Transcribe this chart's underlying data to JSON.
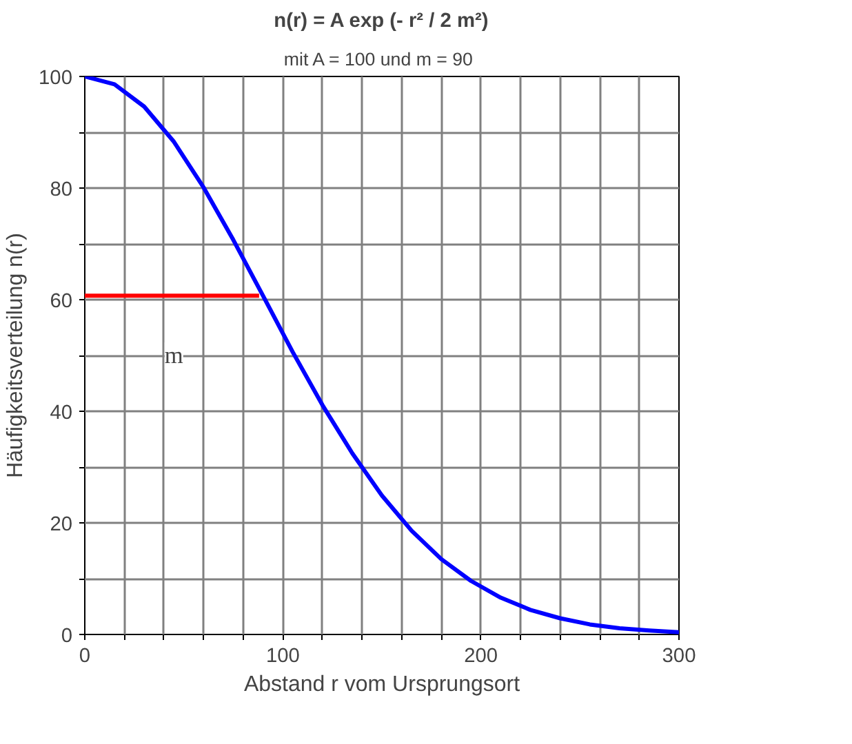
{
  "chart_data": {
    "type": "line",
    "title": "n(r) = A exp (- r² / 2 m²)",
    "subtitle": "mit  A = 100 und m = 90",
    "xlabel": "Abstand r vom Ursprungsort",
    "ylabel": "Häufigkeitsverteilung n(r)",
    "x": [
      0,
      15,
      30,
      45,
      60,
      75,
      90,
      105,
      120,
      135,
      150,
      165,
      180,
      195,
      210,
      225,
      240,
      255,
      270,
      285,
      300
    ],
    "series": [
      {
        "color": "#0000ff",
        "values": [
          100,
          98.6,
          94.6,
          88.3,
          80.1,
          70.7,
          60.7,
          50.6,
          41.1,
          32.5,
          24.9,
          18.6,
          13.5,
          9.6,
          6.6,
          4.4,
          2.9,
          1.8,
          1.1,
          0.7,
          0.4
        ]
      },
      {
        "color": "#ff0000",
        "x": [
          0,
          88
        ],
        "values": [
          60.7,
          60.7
        ]
      }
    ],
    "annotations": [
      {
        "text": "m",
        "x": 45,
        "y": 50
      }
    ],
    "xlim": [
      0,
      300
    ],
    "ylim": [
      0,
      100
    ],
    "xticks": [
      0,
      {
        "value": 20,
        "label": null
      },
      {
        "value": 40,
        "label": null
      },
      {
        "value": 60,
        "label": null
      },
      {
        "value": 80,
        "label": null
      },
      100,
      {
        "value": 120,
        "label": null
      },
      {
        "value": 140,
        "label": null
      },
      {
        "value": 160,
        "label": null
      },
      {
        "value": 180,
        "label": null
      },
      200,
      {
        "value": 220,
        "label": null
      },
      {
        "value": 240,
        "label": null
      },
      {
        "value": 260,
        "label": null
      },
      {
        "value": 280,
        "label": null
      },
      300
    ],
    "yticks": [
      0,
      {
        "value": 10,
        "label": null
      },
      20,
      {
        "value": 30,
        "label": null
      },
      40,
      {
        "value": 50,
        "label": null
      },
      60,
      {
        "value": 70,
        "label": null
      },
      80,
      {
        "value": 90,
        "label": null
      },
      100
    ],
    "grid": true,
    "line_style": "solid"
  }
}
